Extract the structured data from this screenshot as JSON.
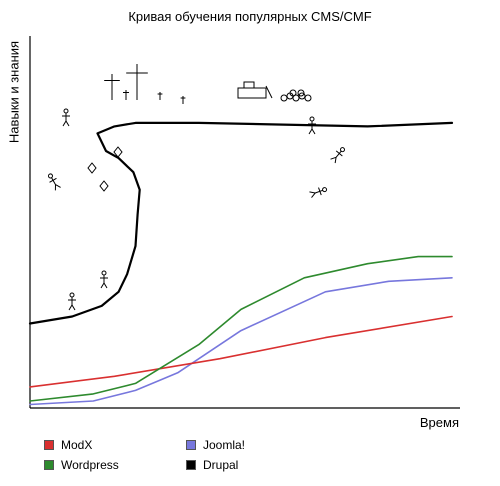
{
  "chart_data": {
    "type": "line",
    "title": "Кривая обучения популярных CMS/CMF",
    "xlabel": "Время",
    "ylabel": "Навыки и знания",
    "xlim": [
      0,
      100
    ],
    "ylim": [
      0,
      100
    ],
    "grid": false,
    "legend_position": "bottom",
    "series": [
      {
        "name": "ModX",
        "color": "#d93030",
        "points": [
          [
            0,
            6
          ],
          [
            20,
            9
          ],
          [
            45,
            14
          ],
          [
            70,
            20
          ],
          [
            100,
            26
          ]
        ]
      },
      {
        "name": "Wordpress",
        "color": "#2e8a2e",
        "points": [
          [
            0,
            2
          ],
          [
            15,
            4
          ],
          [
            25,
            7
          ],
          [
            40,
            18
          ],
          [
            50,
            28
          ],
          [
            65,
            37
          ],
          [
            80,
            41
          ],
          [
            92,
            43
          ],
          [
            100,
            43
          ]
        ]
      },
      {
        "name": "Joomla!",
        "color": "#7777dd",
        "points": [
          [
            0,
            1
          ],
          [
            15,
            2
          ],
          [
            25,
            5
          ],
          [
            35,
            10
          ],
          [
            50,
            22
          ],
          [
            70,
            33
          ],
          [
            85,
            36
          ],
          [
            100,
            37
          ]
        ]
      },
      {
        "name": "Drupal",
        "color": "#000000",
        "points": [
          [
            0,
            24
          ],
          [
            10,
            26
          ],
          [
            17,
            29
          ],
          [
            21,
            33
          ],
          [
            23,
            38
          ],
          [
            25,
            46
          ],
          [
            25.5,
            55
          ],
          [
            26,
            62
          ],
          [
            24.5,
            67
          ],
          [
            21,
            71
          ],
          [
            18,
            73
          ],
          [
            16,
            78
          ],
          [
            20,
            80
          ],
          [
            25,
            81
          ],
          [
            40,
            81
          ],
          [
            60,
            80.5
          ],
          [
            80,
            80
          ],
          [
            100,
            81
          ]
        ]
      }
    ]
  }
}
